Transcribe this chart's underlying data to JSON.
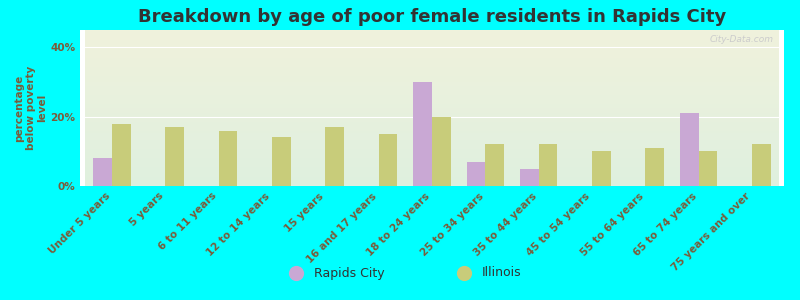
{
  "title": "Breakdown by age of poor female residents in Rapids City",
  "ylabel": "percentage\nbelow poverty\nlevel",
  "categories": [
    "Under 5 years",
    "5 years",
    "6 to 11 years",
    "12 to 14 years",
    "15 years",
    "16 and 17 years",
    "18 to 24 years",
    "25 to 34 years",
    "35 to 44 years",
    "45 to 54 years",
    "55 to 64 years",
    "65 to 74 years",
    "75 years and over"
  ],
  "rapids_city": [
    8.0,
    0,
    0,
    0,
    0,
    0,
    30.0,
    7.0,
    5.0,
    0,
    0,
    21.0,
    0
  ],
  "illinois": [
    18.0,
    17.0,
    16.0,
    14.0,
    17.0,
    15.0,
    20.0,
    12.0,
    12.0,
    10.0,
    11.0,
    10.0,
    12.0
  ],
  "rapids_color": "#c9a8d4",
  "illinois_color": "#c8cc7a",
  "bg_color": "#00ffff",
  "plot_bg_top": "#f0f2dc",
  "plot_bg_bottom": "#dff0df",
  "title_color": "#333333",
  "axis_label_color": "#7a5c3a",
  "tick_label_color": "#7a5c3a",
  "ylim": [
    0,
    45
  ],
  "yticks": [
    0,
    20,
    40
  ],
  "ytick_labels": [
    "0%",
    "20%",
    "40%"
  ],
  "bar_width": 0.35,
  "title_fontsize": 13,
  "label_fontsize": 7.5,
  "tick_fontsize": 7.5,
  "legend_labels": [
    "Rapids City",
    "Illinois"
  ],
  "legend_text_color": "#333333"
}
